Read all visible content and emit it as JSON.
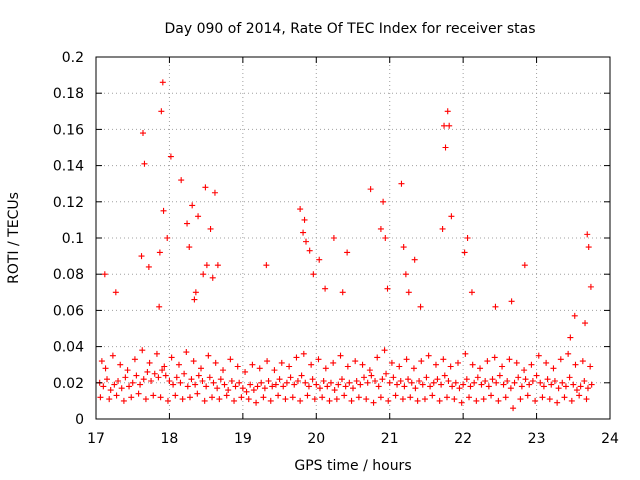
{
  "chart_data": {
    "type": "scatter",
    "title": "Day 090 of 2014, Rate Of TEC Index for receiver stas",
    "xlabel": "GPS time / hours",
    "ylabel": "ROTI / TECUs",
    "xlim": [
      17,
      24
    ],
    "ylim": [
      0,
      0.2
    ],
    "x_ticks": [
      17,
      18,
      19,
      20,
      21,
      22,
      23,
      24
    ],
    "y_ticks": [
      0,
      0.02,
      0.04,
      0.06,
      0.08,
      0.1,
      0.12,
      0.14,
      0.16,
      0.18,
      0.2
    ],
    "x_tick_labels": [
      "17",
      "18",
      "19",
      "20",
      "21",
      "22",
      "23",
      "24"
    ],
    "y_tick_labels": [
      "0",
      "0.02",
      "0.04",
      "0.06",
      "0.08",
      "0.1",
      "0.12",
      "0.14",
      "0.16",
      "0.18",
      "0.2"
    ],
    "grid": true,
    "marker": "plus",
    "series": [
      {
        "name": "ROTI",
        "color": "#ff0000",
        "x": [
          17.05,
          17.1,
          17.15,
          17.2,
          17.25,
          17.3,
          17.35,
          17.4,
          17.45,
          17.5,
          17.55,
          17.6,
          17.65,
          17.7,
          17.75,
          17.8,
          17.85,
          17.9,
          17.95,
          18.0,
          18.05,
          18.1,
          18.15,
          18.2,
          18.25,
          18.3,
          18.35,
          18.4,
          18.45,
          18.5,
          18.55,
          18.6,
          18.65,
          18.7,
          18.75,
          18.8,
          18.85,
          18.9,
          18.95,
          19.0,
          19.05,
          19.1,
          19.15,
          19.2,
          19.25,
          19.3,
          19.35,
          19.4,
          19.45,
          19.5,
          19.55,
          19.6,
          19.65,
          19.7,
          19.75,
          19.8,
          19.85,
          19.9,
          19.95,
          20.0,
          20.05,
          20.1,
          20.15,
          20.2,
          20.25,
          20.3,
          20.35,
          20.4,
          20.45,
          20.5,
          20.55,
          20.6,
          20.65,
          20.7,
          20.75,
          20.8,
          20.85,
          20.9,
          20.95,
          21.0,
          21.05,
          21.1,
          21.15,
          21.2,
          21.25,
          21.3,
          21.35,
          21.4,
          21.45,
          21.5,
          21.55,
          21.6,
          21.65,
          21.7,
          21.75,
          21.8,
          21.85,
          21.9,
          21.95,
          22.0,
          22.05,
          22.1,
          22.15,
          22.2,
          22.25,
          22.3,
          22.35,
          22.4,
          22.45,
          22.5,
          22.55,
          22.6,
          22.65,
          22.7,
          22.75,
          22.8,
          22.85,
          22.9,
          22.95,
          23.0,
          23.05,
          23.1,
          23.15,
          23.2,
          23.25,
          23.3,
          23.35,
          23.4,
          23.45,
          23.5,
          23.55,
          23.6,
          23.65,
          23.7,
          23.75,
          17.08,
          17.13,
          17.23,
          17.33,
          17.43,
          17.53,
          17.63,
          17.73,
          17.83,
          17.93,
          18.03,
          18.13,
          18.23,
          18.33,
          18.43,
          18.53,
          18.63,
          18.73,
          18.83,
          18.93,
          19.03,
          19.13,
          19.23,
          19.33,
          19.43,
          19.53,
          19.63,
          19.73,
          19.83,
          19.93,
          20.03,
          20.13,
          20.23,
          20.33,
          20.43,
          20.53,
          20.63,
          20.73,
          20.83,
          20.93,
          21.03,
          21.13,
          21.23,
          21.33,
          21.43,
          21.53,
          21.63,
          21.73,
          21.83,
          21.93,
          22.03,
          22.13,
          22.23,
          22.33,
          22.43,
          22.53,
          22.63,
          22.73,
          22.83,
          22.93,
          23.03,
          23.13,
          23.23,
          23.33,
          23.43,
          23.53,
          23.63,
          23.73,
          17.06,
          17.18,
          17.28,
          17.38,
          17.48,
          17.58,
          17.68,
          17.78,
          17.88,
          17.98,
          18.08,
          18.18,
          18.28,
          18.38,
          18.48,
          18.58,
          18.68,
          18.78,
          18.88,
          18.98,
          19.08,
          19.18,
          19.28,
          19.38,
          19.48,
          19.58,
          19.68,
          19.78,
          19.88,
          19.98,
          20.08,
          20.18,
          20.28,
          20.38,
          20.48,
          20.58,
          20.68,
          20.78,
          20.88,
          20.98,
          21.08,
          21.18,
          21.28,
          21.38,
          21.48,
          21.58,
          21.68,
          21.78,
          21.88,
          21.98,
          22.08,
          22.18,
          22.28,
          22.38,
          22.48,
          22.58,
          22.68,
          22.78,
          22.88,
          22.98,
          23.08,
          23.18,
          23.28,
          23.38,
          23.48,
          23.58,
          23.68,
          17.12,
          17.27,
          17.62,
          17.64,
          17.66,
          17.72,
          17.86,
          17.87,
          17.89,
          17.91,
          17.92,
          17.97,
          18.02,
          18.16,
          18.24,
          18.27,
          18.31,
          18.34,
          18.36,
          18.39,
          18.46,
          18.49,
          18.51,
          18.56,
          18.59,
          18.62,
          18.66,
          19.32,
          19.78,
          19.82,
          19.84,
          19.86,
          19.91,
          19.96,
          20.04,
          20.12,
          20.24,
          20.36,
          20.42,
          20.74,
          20.88,
          20.91,
          20.94,
          20.97,
          21.16,
          21.19,
          21.22,
          21.26,
          21.34,
          21.42,
          21.72,
          21.74,
          21.76,
          21.79,
          21.81,
          21.84,
          22.02,
          22.06,
          22.12,
          22.44,
          22.66,
          22.84,
          23.46,
          23.52,
          23.66,
          23.69,
          23.71,
          23.74
        ],
        "y": [
          0.02,
          0.018,
          0.022,
          0.016,
          0.019,
          0.021,
          0.017,
          0.023,
          0.018,
          0.02,
          0.024,
          0.019,
          0.022,
          0.026,
          0.021,
          0.025,
          0.023,
          0.027,
          0.024,
          0.021,
          0.019,
          0.023,
          0.02,
          0.025,
          0.018,
          0.022,
          0.019,
          0.024,
          0.021,
          0.018,
          0.023,
          0.02,
          0.017,
          0.022,
          0.019,
          0.016,
          0.021,
          0.018,
          0.02,
          0.017,
          0.015,
          0.019,
          0.016,
          0.018,
          0.02,
          0.017,
          0.021,
          0.018,
          0.019,
          0.022,
          0.018,
          0.02,
          0.023,
          0.019,
          0.021,
          0.024,
          0.02,
          0.018,
          0.022,
          0.019,
          0.017,
          0.021,
          0.018,
          0.02,
          0.016,
          0.019,
          0.022,
          0.018,
          0.02,
          0.017,
          0.021,
          0.019,
          0.023,
          0.02,
          0.024,
          0.021,
          0.018,
          0.022,
          0.025,
          0.02,
          0.023,
          0.019,
          0.021,
          0.018,
          0.022,
          0.02,
          0.017,
          0.021,
          0.019,
          0.023,
          0.018,
          0.02,
          0.022,
          0.019,
          0.024,
          0.021,
          0.018,
          0.02,
          0.017,
          0.019,
          0.022,
          0.018,
          0.02,
          0.023,
          0.019,
          0.021,
          0.018,
          0.022,
          0.02,
          0.024,
          0.019,
          0.021,
          0.017,
          0.02,
          0.023,
          0.018,
          0.022,
          0.019,
          0.021,
          0.024,
          0.02,
          0.018,
          0.022,
          0.019,
          0.021,
          0.017,
          0.02,
          0.018,
          0.023,
          0.019,
          0.016,
          0.018,
          0.021,
          0.017,
          0.019,
          0.032,
          0.028,
          0.035,
          0.03,
          0.027,
          0.033,
          0.038,
          0.031,
          0.036,
          0.029,
          0.034,
          0.03,
          0.037,
          0.032,
          0.028,
          0.035,
          0.031,
          0.027,
          0.033,
          0.029,
          0.026,
          0.03,
          0.028,
          0.032,
          0.027,
          0.031,
          0.029,
          0.034,
          0.036,
          0.03,
          0.033,
          0.028,
          0.031,
          0.035,
          0.029,
          0.032,
          0.03,
          0.027,
          0.034,
          0.038,
          0.031,
          0.029,
          0.033,
          0.028,
          0.032,
          0.035,
          0.03,
          0.033,
          0.029,
          0.031,
          0.036,
          0.03,
          0.028,
          0.032,
          0.034,
          0.029,
          0.033,
          0.031,
          0.027,
          0.03,
          0.035,
          0.031,
          0.028,
          0.033,
          0.036,
          0.03,
          0.032,
          0.029,
          0.012,
          0.011,
          0.013,
          0.01,
          0.012,
          0.014,
          0.011,
          0.013,
          0.012,
          0.01,
          0.013,
          0.011,
          0.012,
          0.014,
          0.01,
          0.012,
          0.011,
          0.013,
          0.01,
          0.012,
          0.011,
          0.009,
          0.012,
          0.01,
          0.013,
          0.011,
          0.012,
          0.01,
          0.013,
          0.011,
          0.012,
          0.01,
          0.011,
          0.013,
          0.01,
          0.012,
          0.011,
          0.009,
          0.012,
          0.01,
          0.013,
          0.011,
          0.012,
          0.01,
          0.011,
          0.013,
          0.01,
          0.012,
          0.011,
          0.009,
          0.012,
          0.01,
          0.011,
          0.013,
          0.01,
          0.012,
          0.006,
          0.011,
          0.013,
          0.01,
          0.012,
          0.011,
          0.009,
          0.012,
          0.01,
          0.013,
          0.011,
          0.08,
          0.07,
          0.09,
          0.158,
          0.141,
          0.084,
          0.062,
          0.092,
          0.17,
          0.186,
          0.115,
          0.1,
          0.145,
          0.132,
          0.108,
          0.095,
          0.118,
          0.066,
          0.07,
          0.112,
          0.08,
          0.128,
          0.085,
          0.105,
          0.078,
          0.125,
          0.085,
          0.085,
          0.116,
          0.103,
          0.11,
          0.098,
          0.093,
          0.08,
          0.088,
          0.072,
          0.1,
          0.07,
          0.092,
          0.127,
          0.105,
          0.12,
          0.1,
          0.072,
          0.13,
          0.095,
          0.08,
          0.07,
          0.088,
          0.062,
          0.105,
          0.162,
          0.15,
          0.17,
          0.162,
          0.112,
          0.092,
          0.1,
          0.07,
          0.062,
          0.065,
          0.085,
          0.045,
          0.057,
          0.053,
          0.102,
          0.095,
          0.073
        ]
      }
    ]
  }
}
